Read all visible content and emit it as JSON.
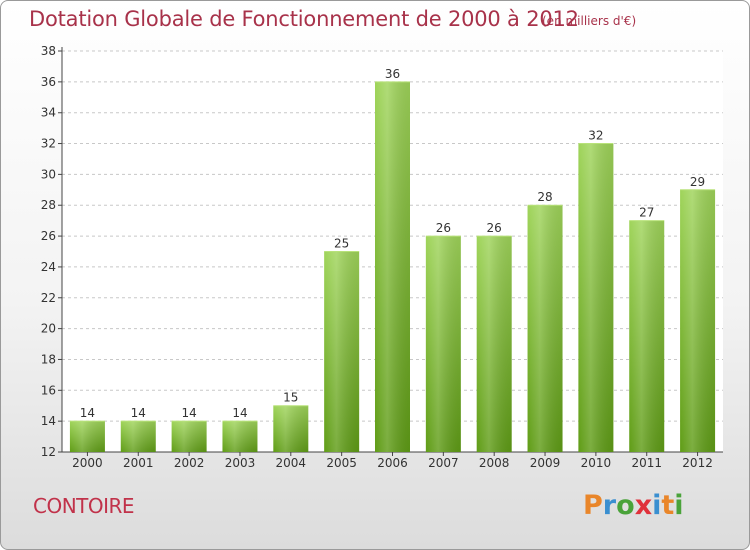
{
  "header": {
    "title": "Dotation Globale de Fonctionnement de 2000 à 2012",
    "unit": "(en milliers d'€)"
  },
  "footer": {
    "commune": "CONTOIRE",
    "logo_text": "Proxiti"
  },
  "colors": {
    "title": "#a8324a",
    "bar_light": "#9fd45a",
    "bar_dark": "#5f9c16",
    "logo_letters": [
      "#e9862a",
      "#3a8fd0",
      "#4aa33a",
      "#e0313b",
      "#3a8fd0",
      "#e9862a",
      "#4aa33a"
    ]
  },
  "chart_data": {
    "type": "bar",
    "title": "Dotation Globale de Fonctionnement de 2000 à 2012",
    "subtitle": "(en milliers d'€)",
    "categories": [
      "2000",
      "2001",
      "2002",
      "2003",
      "2004",
      "2005",
      "2006",
      "2007",
      "2008",
      "2009",
      "2010",
      "2011",
      "2012"
    ],
    "values": [
      14,
      14,
      14,
      14,
      15,
      25,
      36,
      26,
      26,
      28,
      32,
      27,
      29
    ],
    "ylim": [
      12,
      38
    ],
    "yticks": [
      12,
      14,
      16,
      18,
      20,
      22,
      24,
      26,
      28,
      30,
      32,
      34,
      36,
      38
    ],
    "grid": "horizontal dashed",
    "xlabel": "",
    "ylabel": ""
  }
}
